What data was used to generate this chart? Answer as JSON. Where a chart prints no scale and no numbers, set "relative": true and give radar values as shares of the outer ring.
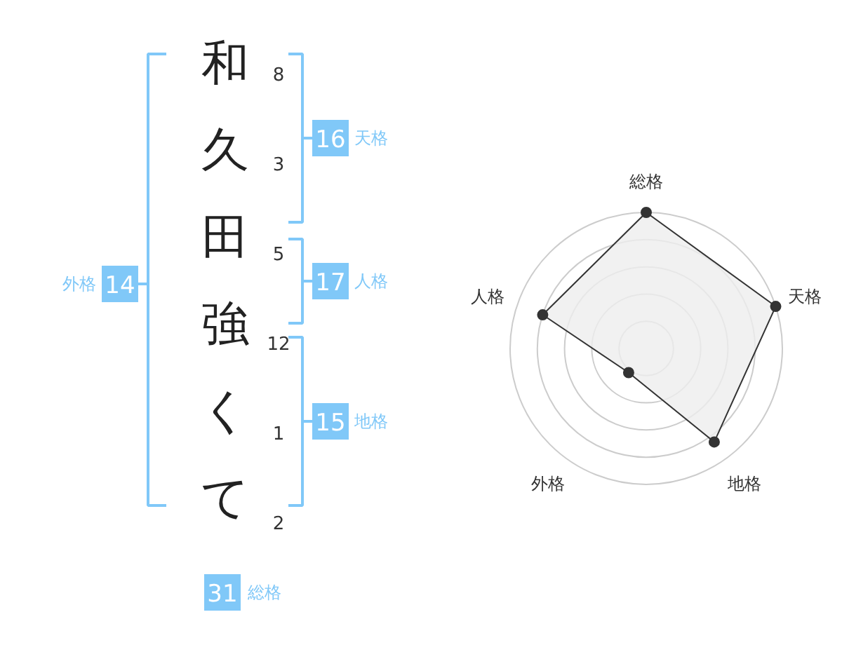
{
  "chart_data": [
    {
      "type": "other",
      "annotations": [
        "和",
        "久",
        "田",
        "強",
        "く",
        "て",
        "8",
        "3",
        "5",
        "12",
        "1",
        "2",
        "16",
        "天格",
        "17",
        "人格",
        "15",
        "地格",
        "14",
        "外格",
        "31",
        "総格"
      ]
    },
    {
      "type": "radar",
      "categories": [
        "総格",
        "天格",
        "地格",
        "外格",
        "人格"
      ],
      "relative": true,
      "series": [
        {
          "color": "#333333",
          "values": [
            1.0,
            1.0,
            0.85,
            0.22,
            0.8
          ]
        }
      ]
    }
  ]
}
